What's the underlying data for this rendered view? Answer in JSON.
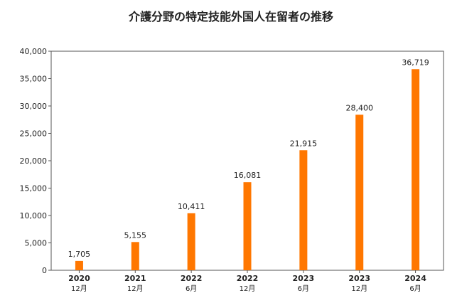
{
  "chart_data": {
    "type": "bar",
    "title": "介護分野の特定技能外国人在留者の推移",
    "categories": [
      {
        "year": "2020",
        "month": "12月"
      },
      {
        "year": "2021",
        "month": "12月"
      },
      {
        "year": "2022",
        "month": "6月"
      },
      {
        "year": "2022",
        "month": "12月"
      },
      {
        "year": "2023",
        "month": "6月"
      },
      {
        "year": "2023",
        "month": "12月"
      },
      {
        "year": "2024",
        "month": "6月"
      }
    ],
    "values": [
      1705,
      5155,
      10411,
      16081,
      21915,
      28400,
      36719
    ],
    "value_labels": [
      "1,705",
      "5,155",
      "10,411",
      "16,081",
      "21,915",
      "28,400",
      "36,719"
    ],
    "yticks": [
      {
        "value": 0,
        "label": "0"
      },
      {
        "value": 5000,
        "label": "5,000"
      },
      {
        "value": 10000,
        "label": "10,000"
      },
      {
        "value": 15000,
        "label": "15,000"
      },
      {
        "value": 20000,
        "label": "20,000"
      },
      {
        "value": 25000,
        "label": "25,000"
      },
      {
        "value": 30000,
        "label": "30,000"
      },
      {
        "value": 35000,
        "label": "35,000"
      },
      {
        "value": 40000,
        "label": "40,000"
      }
    ],
    "ylim": [
      0,
      40000
    ],
    "xlabel": "",
    "ylabel": "",
    "grid": false,
    "legend": "none",
    "bar_color": "#ff7700",
    "axis_color": "#555555"
  }
}
